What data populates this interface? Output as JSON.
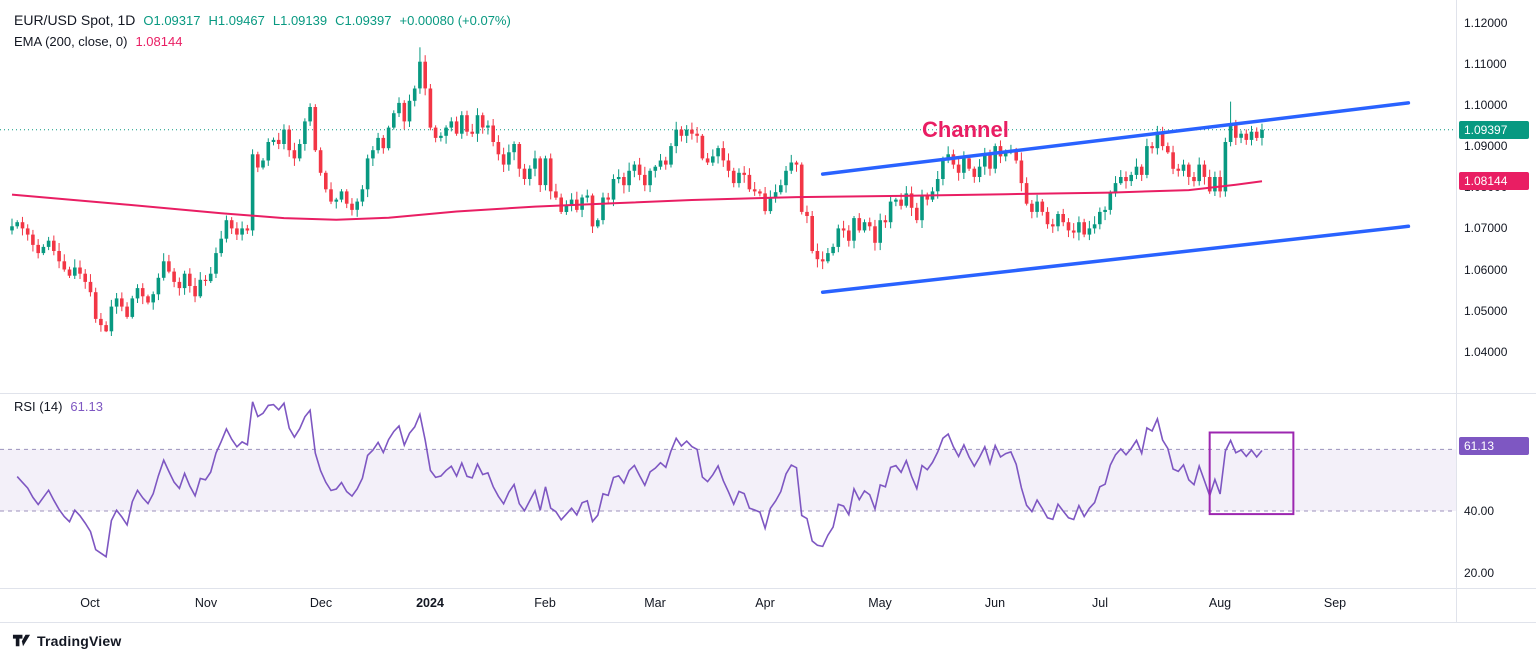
{
  "header": {
    "symbol": "EUR/USD Spot, 1D",
    "open": "O1.09317",
    "high": "H1.09467",
    "low": "L1.09139",
    "close": "C1.09397",
    "change": "+0.00080 (+0.07%)",
    "ema_label": "EMA (200, close, 0)",
    "ema_value": "1.08144",
    "rsi_label": "RSI (14)",
    "rsi_value": "61.13"
  },
  "colors": {
    "up": "#089981",
    "down": "#F23645",
    "ema": "#E91E63",
    "channel": "#2962FF",
    "rsi": "#7E57C2",
    "rsi_band_line": "#9C92BC",
    "highlight": "#9C27B0",
    "annotation": "#E91E63",
    "text": "#131722"
  },
  "axes": {
    "price_ticks": [
      {
        "text": "1.12000",
        "value": 1.12
      },
      {
        "text": "1.11000",
        "value": 1.11
      },
      {
        "text": "1.10000",
        "value": 1.1
      },
      {
        "text": "1.09000",
        "value": 1.09
      },
      {
        "text": "1.08000",
        "value": 1.08
      },
      {
        "text": "1.07000",
        "value": 1.07
      },
      {
        "text": "1.06000",
        "value": 1.06
      },
      {
        "text": "1.05000",
        "value": 1.05
      },
      {
        "text": "1.04000",
        "value": 1.04
      }
    ],
    "rsi_ticks": [
      {
        "text": "40.00",
        "value": 40
      },
      {
        "text": "20.00",
        "value": 20
      }
    ],
    "time_ticks": [
      {
        "text": "Oct",
        "day": 15
      },
      {
        "text": "Nov",
        "day": 37
      },
      {
        "text": "Dec",
        "day": 59
      },
      {
        "text": "2024",
        "day": 80,
        "year": true
      },
      {
        "text": "Feb",
        "day": 102
      },
      {
        "text": "Mar",
        "day": 123
      },
      {
        "text": "Apr",
        "day": 144
      },
      {
        "text": "May",
        "day": 166
      },
      {
        "text": "Jun",
        "day": 188
      },
      {
        "text": "Jul",
        "day": 208
      },
      {
        "text": "Aug",
        "day": 231
      },
      {
        "text": "Sep",
        "day": 253
      }
    ],
    "badges": [
      {
        "text": "1.09397",
        "value": 1.09397,
        "color": "up",
        "pane": "price"
      },
      {
        "text": "1.08144",
        "value": 1.08144,
        "color": "ema",
        "pane": "price"
      },
      {
        "text": "61.13",
        "value": 61.13,
        "color": "rsi",
        "pane": "rsi"
      }
    ]
  },
  "footer": {
    "brand": "TradingView"
  },
  "chart_data": [
    {
      "type": "candlestick",
      "title": "EUR/USD Spot, 1D",
      "interval": "1D",
      "last_ohlc": {
        "o": 1.09317,
        "h": 1.09467,
        "l": 1.09139,
        "c": 1.09397,
        "change": 0.0008,
        "change_pct": 0.07
      },
      "current_price": 1.09397,
      "ylim": [
        1.03,
        1.1255
      ],
      "first_open": 1.0695,
      "closes": [
        1.0705,
        1.0715,
        1.07,
        1.0685,
        1.066,
        1.064,
        1.0655,
        1.067,
        1.0645,
        1.062,
        1.06,
        1.0585,
        1.0605,
        1.059,
        1.057,
        1.0545,
        1.048,
        1.0465,
        1.045,
        1.051,
        1.053,
        1.051,
        1.0485,
        1.053,
        1.0555,
        1.0535,
        1.052,
        1.054,
        1.058,
        1.062,
        1.0595,
        1.057,
        1.0555,
        1.059,
        1.056,
        1.0535,
        1.0575,
        1.0572,
        1.059,
        1.064,
        1.0675,
        1.072,
        1.07,
        1.0685,
        1.07,
        1.0695,
        1.088,
        1.0848,
        1.0865,
        1.091,
        1.0915,
        1.0905,
        1.094,
        1.089,
        1.087,
        1.0905,
        1.096,
        1.0995,
        1.089,
        1.0835,
        1.0795,
        1.0765,
        1.077,
        1.079,
        1.076,
        1.0745,
        1.0765,
        1.0795,
        1.087,
        1.089,
        1.092,
        1.0895,
        1.0945,
        1.098,
        1.1005,
        1.096,
        1.101,
        1.104,
        1.1105,
        1.104,
        1.0945,
        1.092,
        1.0925,
        1.0945,
        1.096,
        1.093,
        1.0975,
        1.0935,
        1.093,
        1.0975,
        1.0945,
        1.095,
        1.091,
        1.088,
        1.0855,
        1.0885,
        1.0905,
        1.0845,
        1.082,
        1.0845,
        1.087,
        1.0805,
        1.087,
        1.079,
        1.0775,
        1.074,
        1.0755,
        1.077,
        1.0745,
        1.0775,
        1.078,
        1.0705,
        1.072,
        1.0775,
        1.077,
        1.082,
        1.0825,
        1.0805,
        1.084,
        1.0855,
        1.083,
        1.0805,
        1.084,
        1.085,
        1.0865,
        1.0855,
        1.09,
        1.094,
        1.0925,
        1.094,
        1.093,
        1.0925,
        1.087,
        1.086,
        1.0875,
        1.0895,
        1.0865,
        1.084,
        1.081,
        1.0835,
        1.083,
        1.0795,
        1.079,
        1.0785,
        1.0742,
        1.0775,
        1.0788,
        1.0805,
        1.084,
        1.086,
        1.0855,
        1.074,
        1.073,
        1.0645,
        1.0625,
        1.062,
        1.064,
        1.0655,
        1.07,
        1.0695,
        1.067,
        1.0725,
        1.0695,
        1.0715,
        1.0705,
        1.0665,
        1.072,
        1.0715,
        1.0765,
        1.077,
        1.0755,
        1.0785,
        1.075,
        1.072,
        1.078,
        1.077,
        1.079,
        1.082,
        1.0865,
        1.088,
        1.0855,
        1.0835,
        1.087,
        1.0845,
        1.0825,
        1.085,
        1.088,
        1.0845,
        1.09,
        1.0875,
        1.0885,
        1.089,
        1.0865,
        1.081,
        1.076,
        1.074,
        1.0765,
        1.074,
        1.071,
        1.0705,
        1.0735,
        1.0715,
        1.0695,
        1.069,
        1.0715,
        1.0685,
        1.07,
        1.071,
        1.074,
        1.0745,
        1.0785,
        1.081,
        1.0825,
        1.0815,
        1.083,
        1.085,
        1.083,
        1.09,
        1.0895,
        1.0935,
        1.09,
        1.0885,
        1.0845,
        1.084,
        1.0855,
        1.0825,
        1.0815,
        1.0855,
        1.0825,
        1.079,
        1.0825,
        1.079,
        1.091,
        1.095,
        1.092,
        1.093,
        1.0915,
        1.0935,
        1.092,
        1.09397
      ],
      "wick_overrides": [
        {
          "i": 18,
          "low": 1.0448
        },
        {
          "i": 78,
          "high": 1.114
        },
        {
          "i": 155,
          "low": 1.0601
        },
        {
          "i": 233,
          "high": 1.1008
        }
      ],
      "ema200": {
        "period": 200,
        "last": 1.08144,
        "anchors": [
          [
            0,
            1.0782
          ],
          [
            20,
            1.076
          ],
          [
            40,
            1.0737
          ],
          [
            52,
            1.0725
          ],
          [
            62,
            1.0721
          ],
          [
            72,
            1.0726
          ],
          [
            85,
            1.0741
          ],
          [
            100,
            1.0753
          ],
          [
            115,
            1.0761
          ],
          [
            130,
            1.0769
          ],
          [
            150,
            1.0776
          ],
          [
            170,
            1.0779
          ],
          [
            190,
            1.0783
          ],
          [
            210,
            1.0787
          ],
          [
            225,
            1.0793
          ],
          [
            234,
            1.0806
          ],
          [
            239,
            1.08144
          ]
        ]
      },
      "channel": {
        "label": "Channel",
        "label_pos": [
          174,
          1.0922
        ],
        "upper": [
          [
            155,
            1.0832
          ],
          [
            267,
            1.1005
          ]
        ],
        "lower": [
          [
            155,
            1.0545
          ],
          [
            267,
            1.0705
          ]
        ]
      }
    },
    {
      "type": "line",
      "name": "RSI (14)",
      "period": 14,
      "last_value": 61.13,
      "bands": [
        60,
        40
      ],
      "band_fill": true,
      "ylim": [
        15,
        78
      ],
      "highlight_box": {
        "day_start": 229,
        "day_end": 245,
        "value_low": 39,
        "value_high": 65.5
      }
    }
  ]
}
